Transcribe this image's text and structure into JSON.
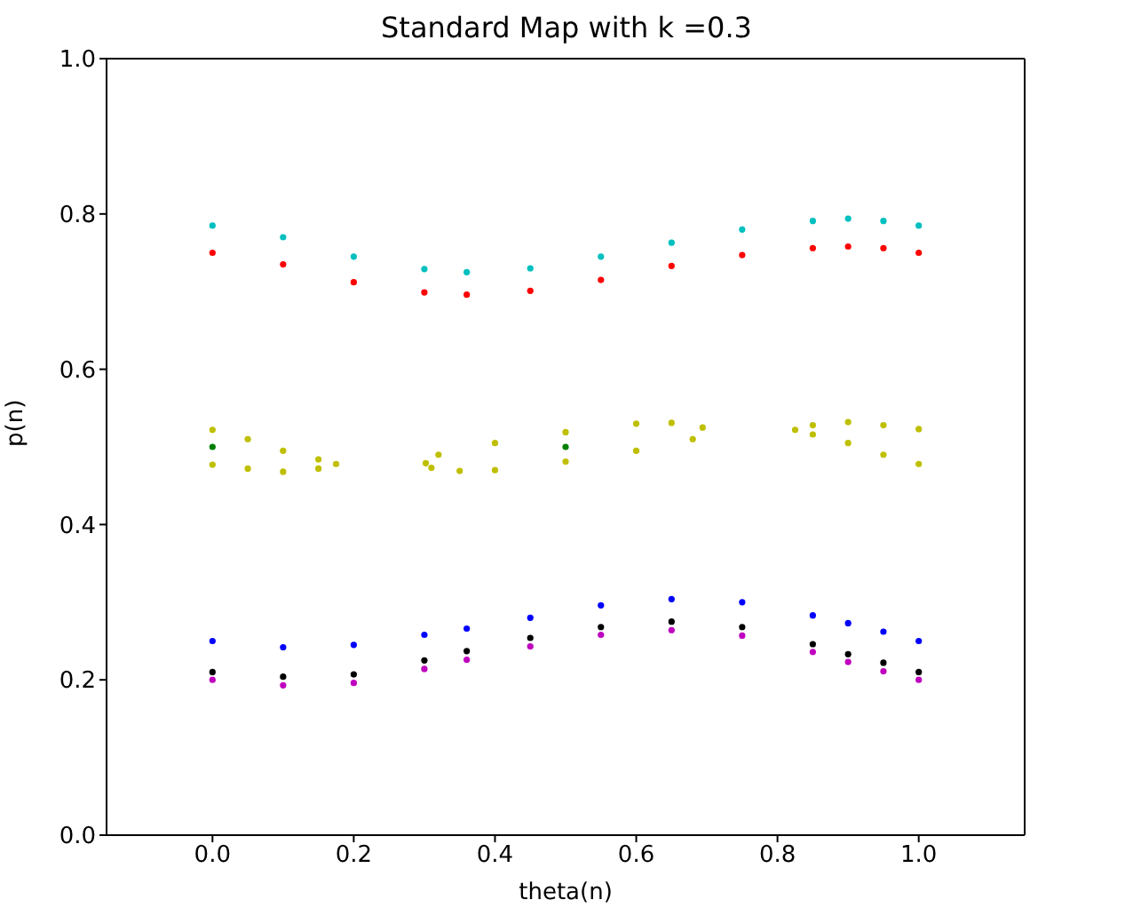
{
  "chart_data": {
    "type": "scatter",
    "title": "Standard Map with k =0.3",
    "xlabel": "theta(n)",
    "ylabel": "p(n)",
    "xlim": [
      -0.15,
      1.15
    ],
    "xticks": [
      {
        "value": 0,
        "label": "0.0"
      },
      {
        "value": 0.2,
        "label": "0.2"
      },
      {
        "value": 0.4,
        "label": "0.4"
      },
      {
        "value": 0.6,
        "label": "0.6"
      },
      {
        "value": 0.8,
        "label": "0.8"
      },
      {
        "value": 1,
        "label": "1.0"
      }
    ],
    "ylim": [
      0,
      1
    ],
    "yticks": [
      {
        "value": 0,
        "label": "0.0"
      },
      {
        "value": 0.2,
        "label": "0.2"
      },
      {
        "value": 0.4,
        "label": "0.4"
      },
      {
        "value": 0.6,
        "label": "0.6"
      },
      {
        "value": 0.8,
        "label": "0.8"
      },
      {
        "value": 1,
        "label": "1.0"
      }
    ],
    "grid": false,
    "marker": "circle",
    "series": [
      {
        "color": "#00bfbf",
        "x": [
          0,
          0.1,
          0.2,
          0.3,
          0.36,
          0.45,
          0.55,
          0.65,
          0.75,
          0.85,
          0.9,
          0.95,
          1
        ],
        "values": [
          0.785,
          0.77,
          0.745,
          0.729,
          0.725,
          0.73,
          0.745,
          0.763,
          0.78,
          0.791,
          0.794,
          0.791,
          0.785
        ]
      },
      {
        "color": "#ff0000",
        "x": [
          0,
          0.1,
          0.2,
          0.3,
          0.36,
          0.45,
          0.55,
          0.65,
          0.75,
          0.85,
          0.9,
          0.95,
          1
        ],
        "values": [
          0.75,
          0.735,
          0.712,
          0.699,
          0.696,
          0.701,
          0.715,
          0.733,
          0.747,
          0.756,
          0.758,
          0.756,
          0.75
        ]
      },
      {
        "color": "#bfbf00",
        "x": [
          0,
          0.05,
          0.1,
          0.15,
          0.175,
          0.15,
          0.1,
          0.05,
          0,
          0.302,
          0.32,
          0.4,
          0.5,
          0.6,
          0.65,
          0.694,
          0.68,
          0.6,
          0.5,
          0.4,
          0.35,
          0.31,
          1,
          0.95,
          0.9,
          0.85,
          0.825,
          0.85,
          0.9,
          0.95,
          1
        ],
        "values": [
          0.522,
          0.51,
          0.495,
          0.484,
          0.478,
          0.472,
          0.468,
          0.472,
          0.477,
          0.479,
          0.49,
          0.505,
          0.519,
          0.53,
          0.531,
          0.525,
          0.51,
          0.495,
          0.481,
          0.47,
          0.469,
          0.473,
          0.478,
          0.49,
          0.505,
          0.516,
          0.522,
          0.528,
          0.532,
          0.528,
          0.523
        ]
      },
      {
        "color": "#008000",
        "x": [
          0,
          0.5
        ],
        "values": [
          0.5,
          0.5
        ]
      },
      {
        "color": "#0000ff",
        "x": [
          0,
          0.1,
          0.2,
          0.3,
          0.36,
          0.45,
          0.55,
          0.65,
          0.75,
          0.85,
          0.9,
          0.95,
          1
        ],
        "values": [
          0.25,
          0.242,
          0.245,
          0.258,
          0.266,
          0.28,
          0.296,
          0.304,
          0.3,
          0.283,
          0.273,
          0.262,
          0.25
        ]
      },
      {
        "color": "#000000",
        "x": [
          0,
          0.1,
          0.2,
          0.3,
          0.36,
          0.45,
          0.55,
          0.65,
          0.75,
          0.85,
          0.9,
          0.95,
          1
        ],
        "values": [
          0.21,
          0.204,
          0.207,
          0.225,
          0.237,
          0.254,
          0.268,
          0.275,
          0.268,
          0.246,
          0.233,
          0.222,
          0.21
        ]
      },
      {
        "color": "#bf00bf",
        "x": [
          0,
          0.1,
          0.2,
          0.3,
          0.36,
          0.45,
          0.55,
          0.65,
          0.75,
          0.85,
          0.9,
          0.95,
          1
        ],
        "values": [
          0.2,
          0.193,
          0.196,
          0.214,
          0.226,
          0.243,
          0.258,
          0.264,
          0.257,
          0.236,
          0.223,
          0.211,
          0.2
        ]
      }
    ]
  }
}
